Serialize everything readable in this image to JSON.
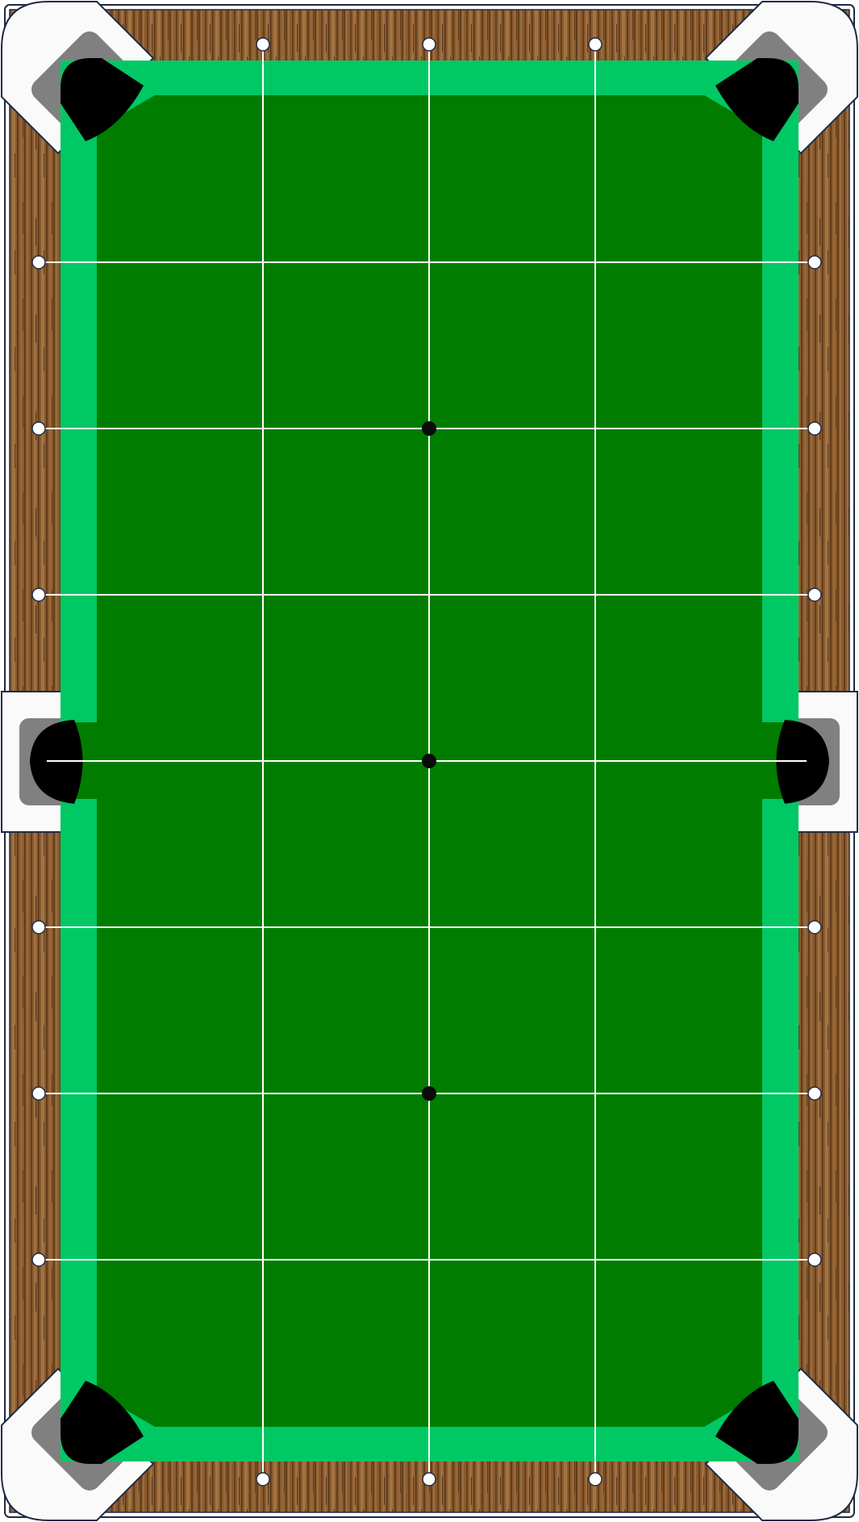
{
  "table": {
    "orientation": "portrait",
    "pockets": 6,
    "diamonds_per_short_rail": 3,
    "diamonds_per_long_rail_half": 3,
    "spots": [
      "head-spot",
      "center-spot",
      "foot-spot"
    ],
    "grid_lines": {
      "vertical": 3,
      "horizontal": 7
    }
  },
  "colors": {
    "cloth": "#007d00",
    "cushion": "#00c864",
    "rail_wood": "#8a5a2e",
    "rail_wood_dark": "#5c3a1a",
    "rail_wood_light": "#a97a4a",
    "corner_plate": "#fafafa",
    "pocket_liner": "#808080",
    "pocket": "#000000",
    "outline": "#1f2a44",
    "grid_line": "#ffffff",
    "diamond": "#ffffff",
    "spot": "#0a0a0a"
  }
}
